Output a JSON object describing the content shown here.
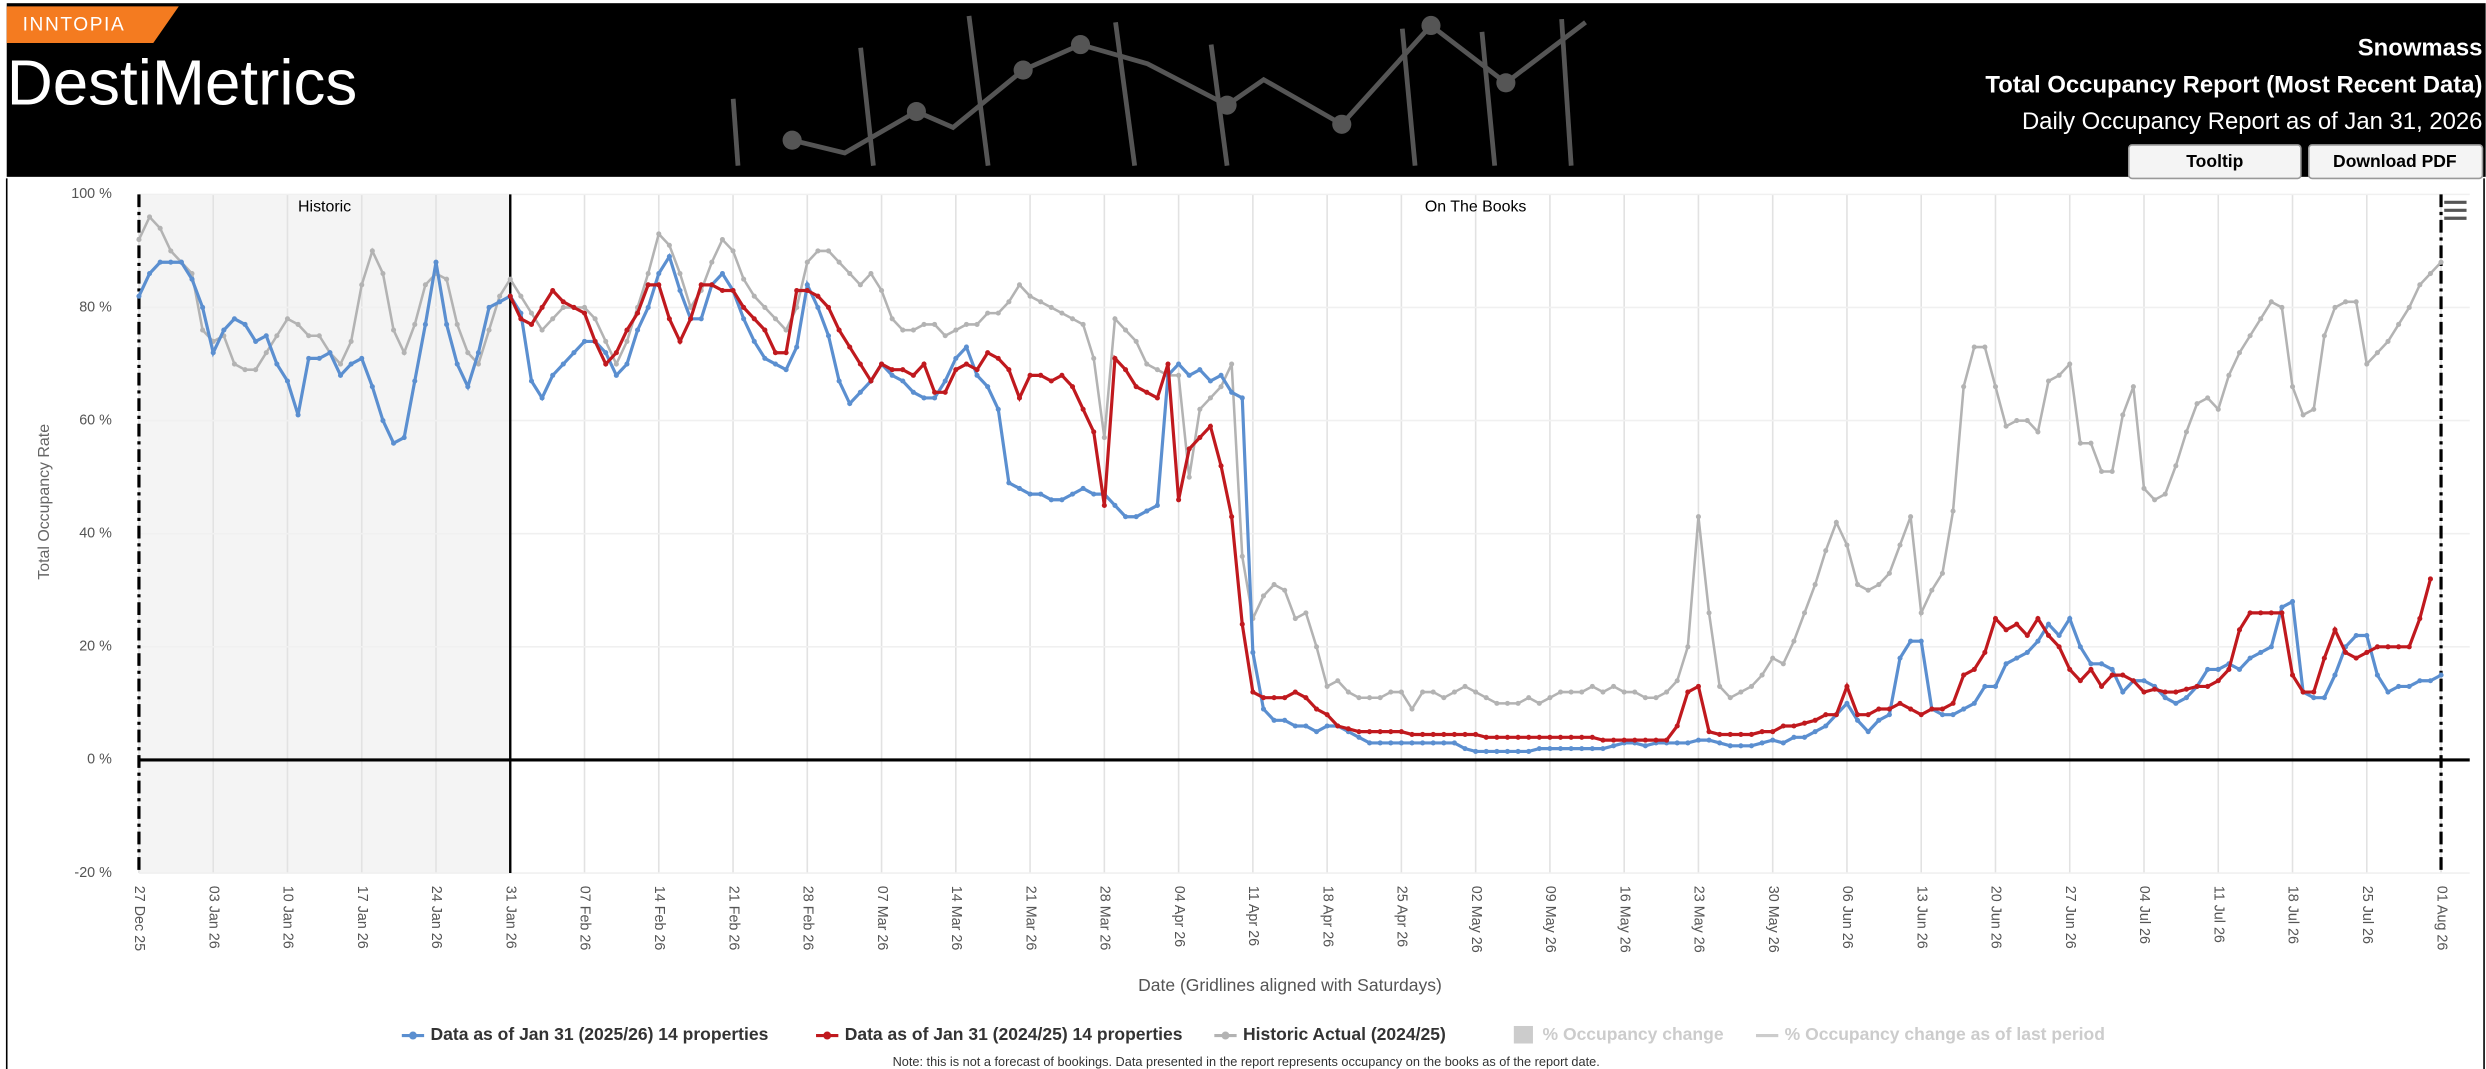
{
  "header": {
    "brand": "INNTOPIA",
    "product": "DestiMetrics",
    "location": "Snowmass",
    "report": "Total Occupancy Report (Most Recent Data)",
    "as_of": "Daily Occupancy Report as of Jan 31, 2026",
    "buttons": [
      "Tooltip",
      "Download PDF"
    ]
  },
  "chart_data": {
    "type": "line",
    "ylabel": "Total Occupancy Rate",
    "xlabel": "Date (Gridlines aligned with Saturdays)",
    "annotations": [
      "Historic",
      "On The Books"
    ],
    "note": "Note: this is not a forecast of bookings. Data presented in the report represents occupancy on the books as of the report date.",
    "inactive_legend": [
      "% Occupancy change",
      "% Occupancy change as of last period"
    ],
    "ylim": [
      -20,
      100
    ],
    "yticks": [
      {
        "value": -20,
        "label": "-20 %"
      },
      {
        "value": 0,
        "label": "0 %"
      },
      {
        "value": 20,
        "label": "20 %"
      },
      {
        "value": 40,
        "label": "40 %"
      },
      {
        "value": 60,
        "label": "60 %"
      },
      {
        "value": 80,
        "label": "80 %"
      },
      {
        "value": 100,
        "label": "100 %"
      }
    ],
    "categories": [
      "27 Dec 25",
      null,
      null,
      null,
      null,
      null,
      null,
      "03 Jan 26",
      null,
      null,
      null,
      null,
      null,
      null,
      "10 Jan 26",
      null,
      null,
      null,
      null,
      null,
      null,
      "17 Jan 26",
      null,
      null,
      null,
      null,
      null,
      null,
      "24 Jan 26",
      null,
      null,
      null,
      null,
      null,
      null,
      "31 Jan 26",
      null,
      null,
      null,
      null,
      null,
      null,
      "07 Feb 26",
      null,
      null,
      null,
      null,
      null,
      null,
      "14 Feb 26",
      null,
      null,
      null,
      null,
      null,
      null,
      "21 Feb 26",
      null,
      null,
      null,
      null,
      null,
      null,
      "28 Feb 26",
      null,
      null,
      null,
      null,
      null,
      null,
      "07 Mar 26",
      null,
      null,
      null,
      null,
      null,
      null,
      "14 Mar 26",
      null,
      null,
      null,
      null,
      null,
      null,
      "21 Mar 26",
      null,
      null,
      null,
      null,
      null,
      null,
      "28 Mar 26",
      null,
      null,
      null,
      null,
      null,
      null,
      "04 Apr 26",
      null,
      null,
      null,
      null,
      null,
      null,
      "11 Apr 26",
      null,
      null,
      null,
      null,
      null,
      null,
      "18 Apr 26",
      null,
      null,
      null,
      null,
      null,
      null,
      "25 Apr 26",
      null,
      null,
      null,
      null,
      null,
      null,
      "02 May 26",
      null,
      null,
      null,
      null,
      null,
      null,
      "09 May 26",
      null,
      null,
      null,
      null,
      null,
      null,
      "16 May 26",
      null,
      null,
      null,
      null,
      null,
      null,
      "23 May 26",
      null,
      null,
      null,
      null,
      null,
      null,
      "30 May 26",
      null,
      null,
      null,
      null,
      null,
      null,
      "06 Jun 26",
      null,
      null,
      null,
      null,
      null,
      null,
      "13 Jun 26",
      null,
      null,
      null,
      null,
      null,
      null,
      "20 Jun 26",
      null,
      null,
      null,
      null,
      null,
      null,
      "27 Jun 26",
      null,
      null,
      null,
      null,
      null,
      null,
      "04 Jul 26",
      null,
      null,
      null,
      null,
      null,
      null,
      "11 Jul 26",
      null,
      null,
      null,
      null,
      null,
      null,
      "18 Jul 26",
      null,
      null,
      null,
      null,
      null,
      null,
      "25 Jul 26",
      null,
      null,
      null,
      null,
      null,
      null,
      "01 Aug 26"
    ],
    "series": [
      {
        "name": "Data as of Jan 31 (2025/26) 14 properties",
        "color": "#5b8fd0",
        "values": [
          82,
          86,
          88,
          88,
          88,
          85,
          80,
          72,
          76,
          78,
          77,
          74,
          75,
          70,
          67,
          61,
          71,
          71,
          72,
          68,
          70,
          71,
          66,
          60,
          56,
          57,
          67,
          77,
          88,
          77,
          70,
          66,
          72,
          80,
          81,
          82,
          79,
          67,
          64,
          68,
          70,
          72,
          74,
          74,
          72,
          68,
          70,
          76,
          80,
          86,
          89,
          83,
          78,
          78,
          84,
          86,
          83,
          78,
          74,
          71,
          70,
          69,
          73,
          84,
          80,
          75,
          67,
          63,
          65,
          67,
          70,
          68,
          67,
          65,
          64,
          64,
          67,
          71,
          73,
          68,
          66,
          62,
          49,
          48,
          47,
          47,
          46,
          46,
          47,
          48,
          47,
          47,
          45,
          43,
          43,
          44,
          45,
          68,
          70,
          68,
          69,
          67,
          68,
          65,
          64,
          19,
          9,
          7,
          7,
          6,
          6,
          5,
          6,
          6,
          5,
          4,
          3,
          3,
          3,
          3,
          3,
          3,
          3,
          3,
          3,
          2,
          1.5,
          1.5,
          1.5,
          1.5,
          1.5,
          1.5,
          2,
          2,
          2,
          2,
          2,
          2,
          2,
          2.5,
          3,
          3,
          2.5,
          3,
          3,
          3,
          3,
          3.5,
          3.5,
          3,
          2.5,
          2.5,
          2.5,
          3,
          3.5,
          3,
          4,
          4,
          5,
          6,
          8,
          10,
          7,
          5,
          7,
          8,
          18,
          21,
          21,
          9,
          8,
          8,
          9,
          10,
          13,
          13,
          17,
          18,
          19,
          21,
          24,
          22,
          25,
          20,
          17,
          17,
          16,
          12,
          14,
          14,
          13,
          11,
          10,
          11,
          13,
          16,
          16,
          17,
          16,
          18,
          19,
          20,
          27,
          28,
          12,
          11,
          11,
          15,
          20,
          22,
          22,
          15,
          12,
          13,
          13,
          14,
          14,
          15
        ]
      },
      {
        "name": "Data as of Jan 31 (2024/25) 14 properties",
        "color": "#c0191e",
        "values": [
          null,
          null,
          null,
          null,
          null,
          null,
          null,
          null,
          null,
          null,
          null,
          null,
          null,
          null,
          null,
          null,
          null,
          null,
          null,
          null,
          null,
          null,
          null,
          null,
          null,
          null,
          null,
          null,
          null,
          null,
          null,
          null,
          null,
          null,
          null,
          82,
          78,
          77,
          80,
          83,
          81,
          80,
          79,
          74,
          70,
          72,
          76,
          79,
          84,
          84,
          78,
          74,
          78,
          84,
          84,
          83,
          83,
          80,
          78,
          76,
          72,
          72,
          83,
          83,
          82,
          80,
          76,
          73,
          70,
          67,
          70,
          69,
          69,
          68,
          70,
          65,
          65,
          69,
          70,
          69,
          72,
          71,
          69,
          64,
          68,
          68,
          67,
          68,
          66,
          62,
          58,
          45,
          71,
          69,
          66,
          65,
          64,
          70,
          46,
          55,
          57,
          59,
          52,
          43,
          24,
          12,
          11,
          11,
          11,
          12,
          11,
          9,
          8,
          6,
          5.5,
          5,
          5,
          5,
          5,
          5,
          4.5,
          4.5,
          4.5,
          4.5,
          4.5,
          4.5,
          4.5,
          4,
          4,
          4,
          4,
          4,
          4,
          4,
          4,
          4,
          4,
          4,
          3.5,
          3.5,
          3.5,
          3.5,
          3.5,
          3.5,
          3.5,
          6,
          12,
          13,
          5,
          4.5,
          4.5,
          4.5,
          4.5,
          5,
          5,
          6,
          6,
          6.5,
          7,
          8,
          8,
          13,
          8,
          8,
          9,
          9,
          10,
          9,
          8,
          9,
          9,
          10,
          15,
          16,
          19,
          25,
          23,
          24,
          22,
          25,
          22,
          20,
          16,
          14,
          16,
          13,
          15,
          15,
          14,
          12,
          12.5,
          12,
          12,
          12.5,
          13,
          13,
          14,
          16,
          23,
          26,
          26,
          26,
          26,
          15,
          12,
          12,
          18,
          23,
          19,
          18,
          19,
          20,
          20,
          20,
          20,
          25,
          32,
          null
        ]
      },
      {
        "name": "Historic Actual (2024/25)",
        "color": "#b3b3b3",
        "values": [
          92,
          96,
          94,
          90,
          88,
          86,
          76,
          74,
          75,
          70,
          69,
          69,
          72,
          75,
          78,
          77,
          75,
          75,
          72,
          70,
          74,
          84,
          90,
          86,
          76,
          72,
          77,
          84,
          86,
          85,
          77,
          72,
          70,
          76,
          82,
          85,
          82,
          79,
          76,
          78,
          80,
          80,
          80,
          78,
          74,
          70,
          74,
          80,
          86,
          93,
          91,
          86,
          80,
          83,
          88,
          92,
          90,
          85,
          82,
          80,
          78,
          76,
          80,
          88,
          90,
          90,
          88,
          86,
          84,
          86,
          83,
          78,
          76,
          76,
          77,
          77,
          75,
          76,
          77,
          77,
          79,
          79,
          81,
          84,
          82,
          81,
          80,
          79,
          78,
          77,
          71,
          57,
          78,
          76,
          74,
          70,
          69,
          68,
          68,
          50,
          62,
          64,
          66,
          70,
          36,
          25,
          29,
          31,
          30,
          25,
          26,
          20,
          13,
          14,
          12,
          11,
          11,
          11,
          12,
          12,
          9,
          12,
          12,
          11,
          12,
          13,
          12,
          11,
          10,
          10,
          10,
          11,
          10,
          11,
          12,
          12,
          12,
          13,
          12,
          13,
          12,
          12,
          11,
          11,
          12,
          14,
          20,
          43,
          26,
          13,
          11,
          12,
          13,
          15,
          18,
          17,
          21,
          26,
          31,
          37,
          42,
          38,
          31,
          30,
          31,
          33,
          38,
          43,
          26,
          30,
          33,
          44,
          66,
          73,
          73,
          66,
          59,
          60,
          60,
          58,
          67,
          68,
          70,
          56,
          56,
          51,
          51,
          61,
          66,
          48,
          46,
          47,
          52,
          58,
          63,
          64,
          62,
          68,
          72,
          75,
          78,
          81,
          80,
          66,
          61,
          62,
          75,
          80,
          81,
          81,
          70,
          72,
          74,
          77,
          80,
          84,
          86,
          88
        ]
      }
    ]
  }
}
